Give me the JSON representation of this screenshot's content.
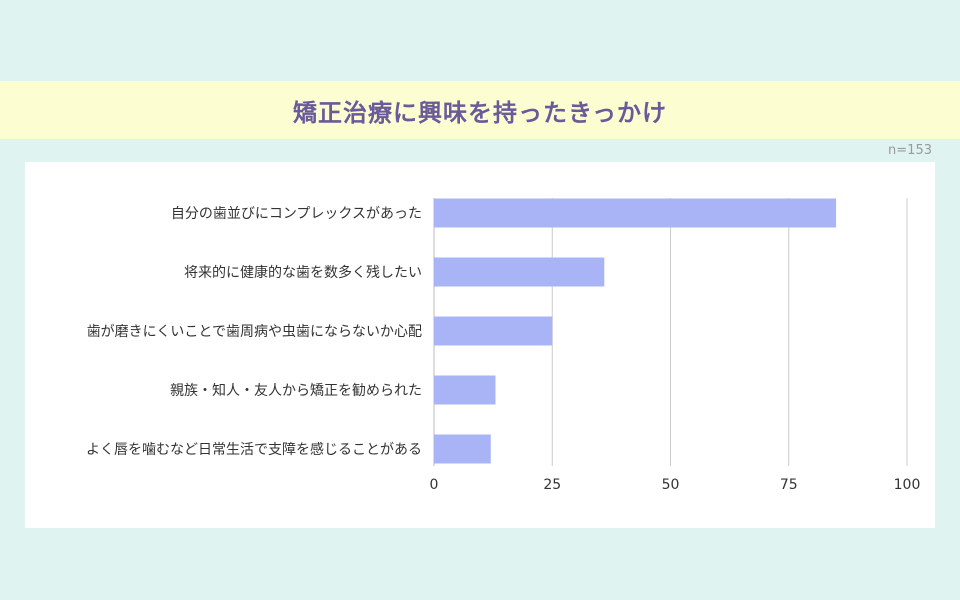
{
  "title": "矯正治療に興味を持ったきっかけ",
  "sample_size": "n=153",
  "colors": {
    "bar": "#a9b4f6",
    "grid": "#cccccc",
    "title": "#6a5a9a"
  },
  "chart_data": {
    "type": "bar",
    "orientation": "horizontal",
    "categories": [
      "自分の歯並びにコンプレックスがあった",
      "将来的に健康的な歯を数多く残したい",
      "歯が磨きにくいことで歯周病や虫歯にならないか心配",
      "親族・知人・友人から矯正を勧められた",
      "よく唇を噛むなど日常生活で支障を感じることがある"
    ],
    "values": [
      85,
      36,
      25,
      13,
      12
    ],
    "xlim": [
      0,
      100
    ],
    "xticks": [
      "0",
      "25",
      "50",
      "75",
      "100"
    ],
    "grid": true
  }
}
